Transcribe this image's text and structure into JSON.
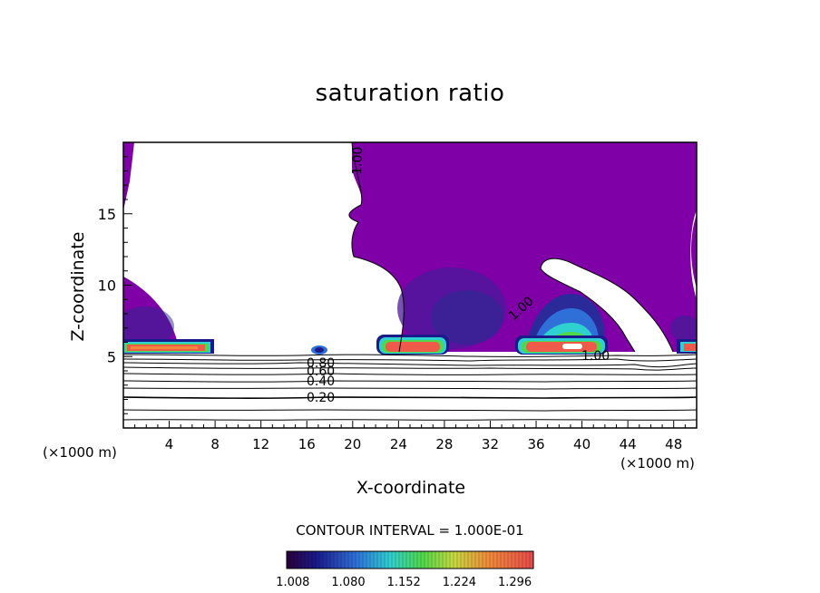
{
  "chart_data": {
    "type": "heatmap",
    "title": "saturation ratio",
    "xlabel": "X-coordinate",
    "ylabel": "Z-coordinate",
    "x_unit_label": "(×1000 m)",
    "xlim": [
      0,
      50
    ],
    "ylim": [
      0,
      20
    ],
    "x_ticks": [
      4,
      8,
      12,
      16,
      20,
      24,
      28,
      32,
      36,
      40,
      44,
      48
    ],
    "y_ticks": [
      5,
      10,
      15
    ],
    "contour_interval_text": "CONTOUR INTERVAL = 1.000E-01",
    "colorbar": {
      "min": 1.0,
      "max": 1.32,
      "tick_labels": [
        "1.008",
        "1.080",
        "1.152",
        "1.224",
        "1.296"
      ]
    },
    "contour_labels": [
      "1.00",
      "1.00",
      "1.00",
      "0.80",
      "0.60",
      "0.40",
      "0.20"
    ],
    "colors": {
      "supersat_base": "#7f00a7",
      "high": "#ef5a4a",
      "max": "#ffffff"
    }
  }
}
